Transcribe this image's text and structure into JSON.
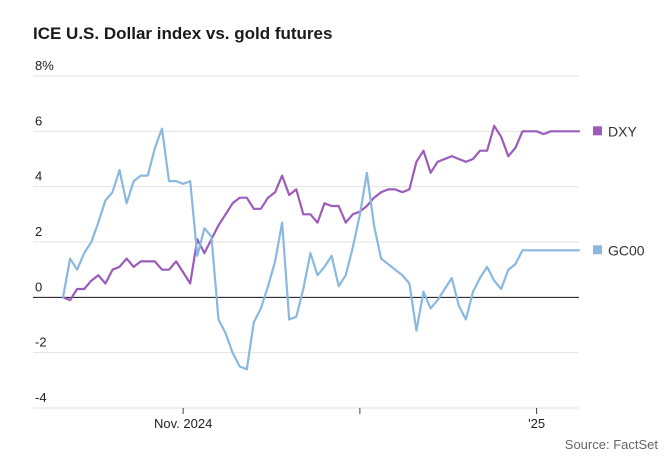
{
  "title": "ICE U.S. Dollar index vs. gold futures",
  "source": "Source: FactSet",
  "colors": {
    "DXY": "#9b5cbb",
    "GC00": "#8ab8e0",
    "grid": "#e2e2e2",
    "zero": "#111111"
  },
  "chart_data": {
    "type": "line",
    "title": "ICE U.S. Dollar index vs. gold futures",
    "ylim": [
      -4,
      8
    ],
    "yticks": [
      -4,
      -2,
      0,
      2,
      4,
      6,
      8
    ],
    "ytick_labels": [
      "-4",
      "-2",
      "0",
      "2",
      "4",
      "6",
      "8%"
    ],
    "x_tick_labels": [
      "Nov. 2024",
      "",
      "'25"
    ],
    "x_tick_positions": [
      17,
      42,
      67
    ],
    "x_range": [
      0,
      73
    ],
    "grid": true,
    "legend": "right",
    "series": [
      {
        "name": "DXY",
        "x": [
          0,
          1,
          2,
          3,
          4,
          5,
          6,
          7,
          8,
          9,
          10,
          11,
          12,
          13,
          14,
          15,
          16,
          17,
          18,
          19,
          20,
          21,
          22,
          23,
          24,
          25,
          26,
          27,
          28,
          29,
          30,
          31,
          32,
          33,
          34,
          35,
          36,
          37,
          38,
          39,
          40,
          41,
          42,
          43,
          44,
          45,
          46,
          47,
          48,
          49,
          50,
          51,
          52,
          53,
          54,
          55,
          56,
          57,
          58,
          59,
          60,
          61,
          62,
          63,
          64,
          65,
          66,
          67,
          68,
          69,
          70,
          71,
          72,
          73
        ],
        "values": [
          0.0,
          -0.1,
          0.3,
          0.3,
          0.6,
          0.8,
          0.5,
          1.0,
          1.1,
          1.4,
          1.1,
          1.3,
          1.3,
          1.3,
          1.0,
          1.0,
          1.3,
          0.9,
          0.5,
          2.1,
          1.6,
          2.1,
          2.6,
          3.0,
          3.4,
          3.6,
          3.6,
          3.2,
          3.2,
          3.6,
          3.8,
          4.4,
          3.7,
          3.9,
          3.0,
          3.0,
          2.7,
          3.4,
          3.3,
          3.3,
          2.7,
          3.0,
          3.1,
          3.3,
          3.6,
          3.8,
          3.9,
          3.9,
          3.8,
          3.9,
          4.9,
          5.3,
          4.5,
          4.9,
          5.0,
          5.1,
          5.0,
          4.9,
          5.0,
          5.3,
          5.3,
          6.2,
          5.8,
          5.1,
          5.4,
          6.0,
          6.0,
          6.0,
          5.9,
          6.0,
          6.0,
          6.0,
          6.0,
          6.0
        ]
      },
      {
        "name": "GC00",
        "x": [
          0,
          1,
          2,
          3,
          4,
          5,
          6,
          7,
          8,
          9,
          10,
          11,
          12,
          13,
          14,
          15,
          16,
          17,
          18,
          19,
          20,
          21,
          22,
          23,
          24,
          25,
          26,
          27,
          28,
          29,
          30,
          31,
          32,
          33,
          34,
          35,
          36,
          37,
          38,
          39,
          40,
          41,
          42,
          43,
          44,
          45,
          46,
          47,
          48,
          49,
          50,
          51,
          52,
          53,
          54,
          55,
          56,
          57,
          58,
          59,
          60,
          61,
          62,
          63,
          64,
          65,
          66,
          67,
          68,
          69,
          70,
          71,
          72,
          73
        ],
        "values": [
          0.0,
          1.4,
          1.0,
          1.6,
          2.0,
          2.7,
          3.5,
          3.8,
          4.6,
          3.4,
          4.2,
          4.4,
          4.4,
          5.4,
          6.1,
          4.2,
          4.2,
          4.1,
          4.2,
          1.5,
          2.5,
          2.2,
          -0.8,
          -1.3,
          -2.0,
          -2.5,
          -2.6,
          -0.9,
          -0.4,
          0.4,
          1.3,
          2.7,
          -0.8,
          -0.7,
          0.3,
          1.6,
          0.8,
          1.1,
          1.5,
          0.4,
          0.8,
          1.8,
          3.0,
          4.5,
          2.6,
          1.4,
          1.2,
          1.0,
          0.8,
          0.5,
          -1.2,
          0.2,
          -0.4,
          -0.1,
          0.3,
          0.7,
          -0.3,
          -0.8,
          0.2,
          0.7,
          1.1,
          0.6,
          0.3,
          1.0,
          1.2,
          1.7,
          1.7,
          1.7,
          1.7,
          1.7,
          1.7,
          1.7,
          1.7,
          1.7
        ]
      }
    ]
  }
}
